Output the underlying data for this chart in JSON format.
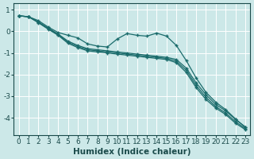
{
  "xlabel": "Humidex (Indice chaleur)",
  "bg_color": "#cce8e8",
  "line_color": "#1a6b6b",
  "grid_color": "#b8d8d8",
  "x": [
    0,
    1,
    2,
    3,
    4,
    5,
    6,
    7,
    8,
    9,
    10,
    11,
    12,
    13,
    14,
    15,
    16,
    17,
    18,
    19,
    20,
    21,
    22,
    23
  ],
  "line1": [
    0.72,
    0.68,
    0.4,
    0.1,
    -0.18,
    -0.55,
    -0.75,
    -0.9,
    -0.95,
    -1.0,
    -1.05,
    -1.1,
    -1.15,
    -1.2,
    -1.25,
    -1.3,
    -1.45,
    -1.9,
    -2.6,
    -3.15,
    -3.55,
    -3.85,
    -4.25,
    -4.55
  ],
  "line2": [
    0.72,
    0.68,
    0.42,
    0.12,
    -0.15,
    -0.5,
    -0.7,
    -0.85,
    -0.9,
    -0.95,
    -1.0,
    -1.05,
    -1.1,
    -1.15,
    -1.2,
    -1.25,
    -1.38,
    -1.8,
    -2.5,
    -3.05,
    -3.48,
    -3.78,
    -4.18,
    -4.5
  ],
  "line3": [
    0.72,
    0.68,
    0.44,
    0.15,
    -0.12,
    -0.45,
    -0.65,
    -0.8,
    -0.85,
    -0.9,
    -0.95,
    -1.0,
    -1.05,
    -1.1,
    -1.15,
    -1.2,
    -1.3,
    -1.7,
    -2.38,
    -2.93,
    -3.38,
    -3.68,
    -4.08,
    -4.42
  ],
  "line4": [
    0.72,
    0.68,
    0.5,
    0.2,
    -0.05,
    -0.18,
    -0.3,
    -0.58,
    -0.68,
    -0.72,
    -0.35,
    -0.1,
    -0.18,
    -0.22,
    -0.08,
    -0.22,
    -0.65,
    -1.35,
    -2.15,
    -2.82,
    -3.28,
    -3.62,
    -4.05,
    -4.45
  ],
  "ylim": [
    -4.8,
    1.3
  ],
  "xlim": [
    -0.5,
    23.5
  ],
  "yticks": [
    1,
    0,
    -1,
    -2,
    -3,
    -4
  ],
  "xticks": [
    0,
    1,
    2,
    3,
    4,
    5,
    6,
    7,
    8,
    9,
    10,
    11,
    12,
    13,
    14,
    15,
    16,
    17,
    18,
    19,
    20,
    21,
    22,
    23
  ],
  "tick_fontsize": 6.5,
  "label_fontsize": 7.5
}
